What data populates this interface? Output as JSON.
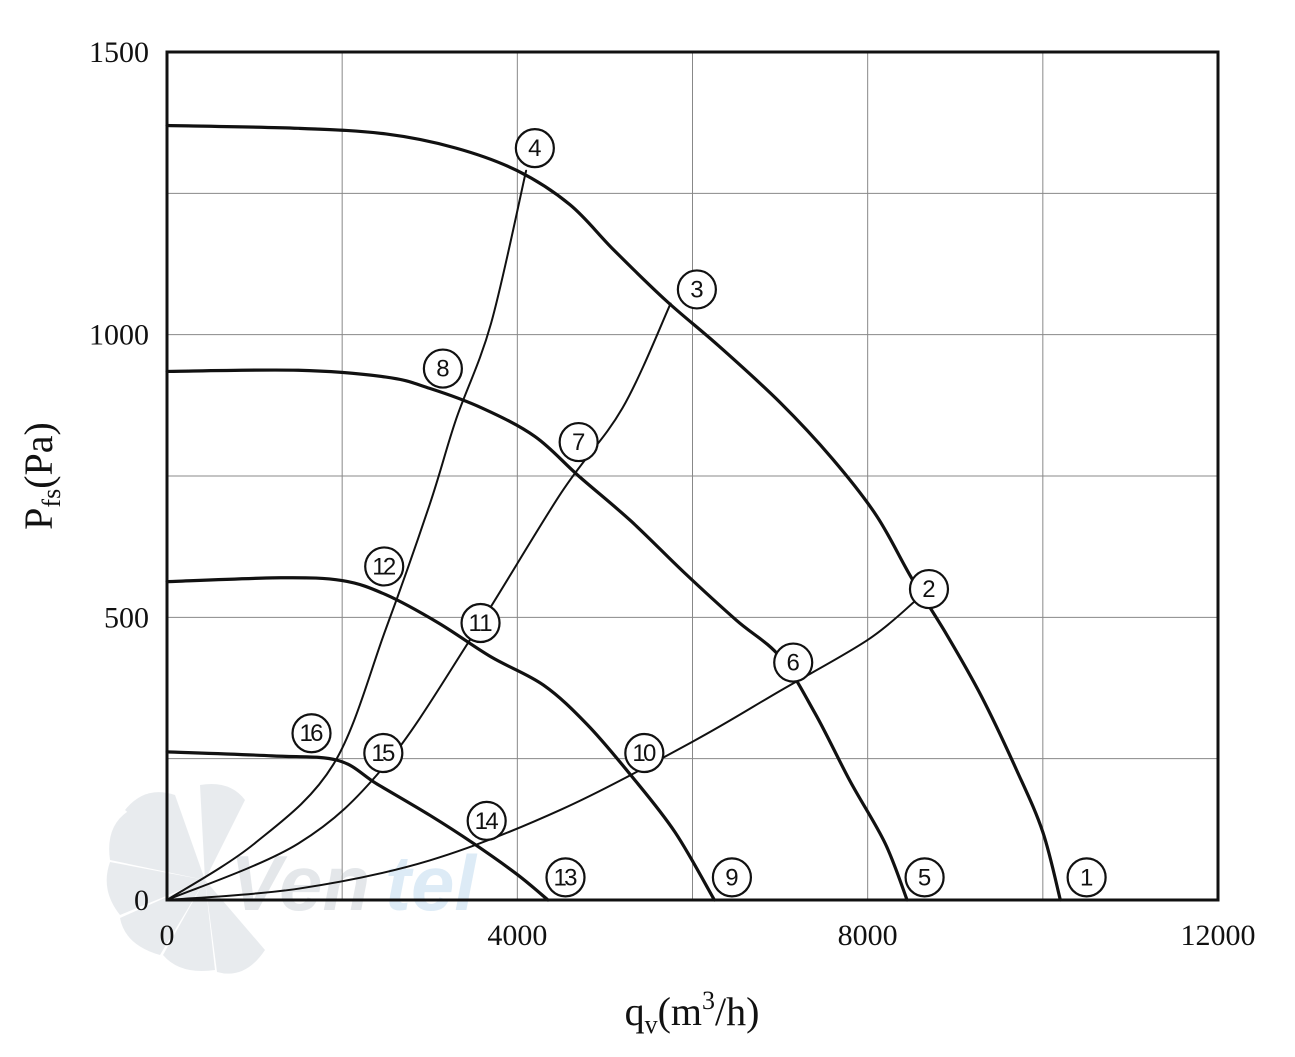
{
  "chart_data": {
    "type": "line",
    "title": "",
    "xlabel": {
      "main": "q",
      "sub": "v",
      "rest": "(m",
      "sup": "3",
      "tail": "/h)"
    },
    "ylabel": {
      "main": "P",
      "sub": "fs",
      "rest": "(Pa)"
    },
    "xlim": [
      0,
      12000
    ],
    "ylim": [
      0,
      1500
    ],
    "xticks": [
      0,
      4000,
      8000,
      12000
    ],
    "xtick_labels": [
      "0",
      "4000",
      "8000",
      "12000"
    ],
    "yticks": [
      0,
      500,
      1000,
      1500
    ],
    "ytick_labels": [
      "0",
      "500",
      "1000",
      "1500"
    ],
    "grid": true,
    "grid_x_step": 2000,
    "grid_y_step": 250,
    "fan_curves": [
      {
        "points": [
          [
            0,
            1370
          ],
          [
            1500,
            1365
          ],
          [
            2500,
            1355
          ],
          [
            3300,
            1330
          ],
          [
            4000,
            1290
          ],
          [
            4600,
            1230
          ],
          [
            5100,
            1150
          ],
          [
            5700,
            1060
          ],
          [
            6300,
            980
          ],
          [
            7000,
            880
          ],
          [
            7600,
            780
          ],
          [
            8100,
            680
          ],
          [
            8500,
            570
          ],
          [
            8900,
            470
          ],
          [
            9300,
            360
          ],
          [
            9700,
            230
          ],
          [
            10000,
            120
          ],
          [
            10200,
            0
          ]
        ]
      },
      {
        "points": [
          [
            0,
            935
          ],
          [
            1500,
            937
          ],
          [
            2500,
            925
          ],
          [
            3000,
            905
          ],
          [
            3600,
            870
          ],
          [
            4200,
            820
          ],
          [
            4700,
            750
          ],
          [
            5300,
            670
          ],
          [
            5900,
            580
          ],
          [
            6500,
            495
          ],
          [
            7000,
            430
          ],
          [
            7400,
            330
          ],
          [
            7800,
            210
          ],
          [
            8200,
            100
          ],
          [
            8450,
            0
          ]
        ]
      },
      {
        "points": [
          [
            0,
            563
          ],
          [
            1300,
            570
          ],
          [
            2000,
            565
          ],
          [
            2500,
            540
          ],
          [
            3100,
            490
          ],
          [
            3700,
            430
          ],
          [
            4300,
            380
          ],
          [
            4800,
            310
          ],
          [
            5300,
            220
          ],
          [
            5800,
            120
          ],
          [
            6250,
            0
          ]
        ]
      },
      {
        "points": [
          [
            0,
            262
          ],
          [
            1200,
            255
          ],
          [
            1950,
            247
          ],
          [
            2400,
            205
          ],
          [
            3000,
            150
          ],
          [
            3500,
            100
          ],
          [
            4000,
            45
          ],
          [
            4350,
            0
          ]
        ]
      }
    ],
    "system_curves": [
      {
        "points": [
          [
            0,
            0
          ],
          [
            1500,
            20
          ],
          [
            3000,
            70
          ],
          [
            4500,
            160
          ],
          [
            6000,
            280
          ],
          [
            7000,
            370
          ],
          [
            8000,
            460
          ],
          [
            8550,
            530
          ]
        ]
      },
      {
        "points": [
          [
            0,
            0
          ],
          [
            1500,
            100
          ],
          [
            2500,
            240
          ],
          [
            3500,
            470
          ],
          [
            4500,
            720
          ],
          [
            5200,
            870
          ],
          [
            5750,
            1055
          ]
        ]
      },
      {
        "points": [
          [
            0,
            0
          ],
          [
            1000,
            100
          ],
          [
            1900,
            240
          ],
          [
            2500,
            480
          ],
          [
            3000,
            700
          ],
          [
            3300,
            850
          ],
          [
            3700,
            1020
          ],
          [
            4100,
            1290
          ]
        ]
      }
    ],
    "labels": [
      {
        "text": "1",
        "x": 10500,
        "y": 40
      },
      {
        "text": "2",
        "x": 8700,
        "y": 550
      },
      {
        "text": "3",
        "x": 6050,
        "y": 1080
      },
      {
        "text": "4",
        "x": 4200,
        "y": 1330
      },
      {
        "text": "5",
        "x": 8650,
        "y": 40
      },
      {
        "text": "6",
        "x": 7150,
        "y": 420
      },
      {
        "text": "7",
        "x": 4700,
        "y": 810
      },
      {
        "text": "8",
        "x": 3150,
        "y": 940
      },
      {
        "text": "9",
        "x": 6450,
        "y": 40
      },
      {
        "text": "10",
        "x": 5450,
        "y": 260
      },
      {
        "text": "11",
        "x": 3580,
        "y": 490
      },
      {
        "text": "12",
        "x": 2480,
        "y": 590
      },
      {
        "text": "13",
        "x": 4550,
        "y": 40
      },
      {
        "text": "14",
        "x": 3650,
        "y": 140
      },
      {
        "text": "15",
        "x": 2470,
        "y": 260
      },
      {
        "text": "16",
        "x": 1650,
        "y": 295
      }
    ]
  }
}
